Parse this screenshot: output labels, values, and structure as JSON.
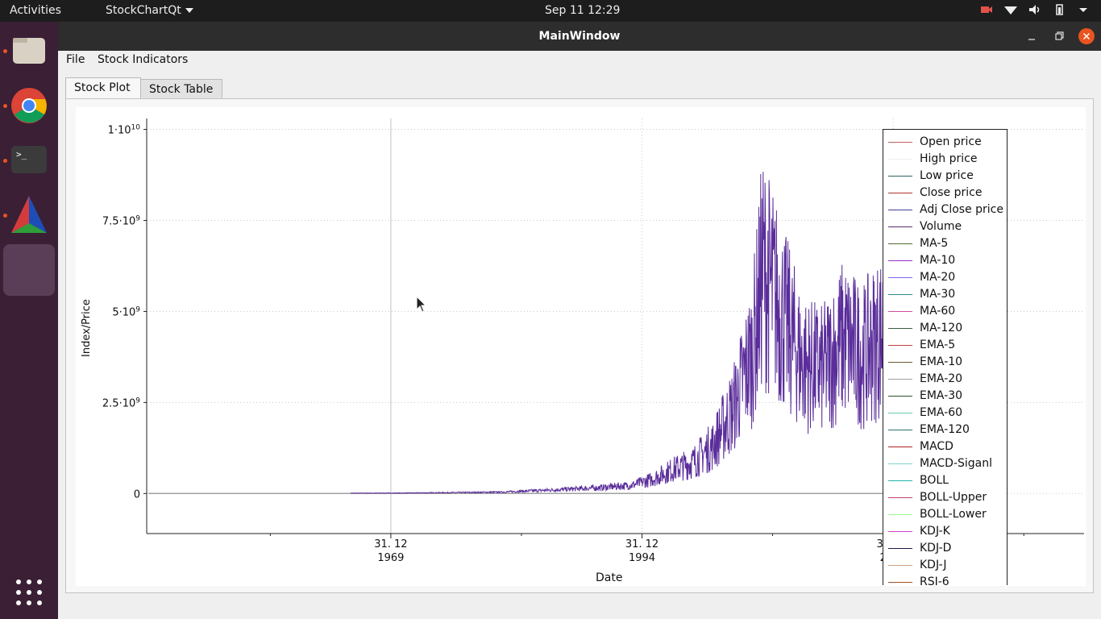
{
  "topbar": {
    "activities": "Activities",
    "app": "StockChartQt",
    "clock": "Sep 11  12:29"
  },
  "window": {
    "title": "MainWindow"
  },
  "menu": {
    "file": "File",
    "indicators": "Stock Indicators"
  },
  "tabs": [
    {
      "label": "Stock Plot"
    },
    {
      "label": "Stock Table"
    }
  ],
  "chart_data": {
    "type": "line",
    "ylabel": "Index/Price",
    "xlabel": "Date",
    "yticks": [
      {
        "v": 10000000000.0,
        "mant": "1·10",
        "exp": "10"
      },
      {
        "v": 7500000000.0,
        "mant": "7.5·10",
        "exp": "9"
      },
      {
        "v": 5000000000.0,
        "mant": "5·10",
        "exp": "9"
      },
      {
        "v": 2500000000.0,
        "mant": "2.5·10",
        "exp": "9"
      },
      {
        "v": 0,
        "mant": "0",
        "exp": ""
      }
    ],
    "xticks": [
      {
        "line1": "31. 12",
        "line2": "1969",
        "year": 1969
      },
      {
        "line1": "31. 12",
        "line2": "1994",
        "year": 1994
      },
      {
        "line1": "31. 12",
        "line2": "2019",
        "year": 2019
      }
    ],
    "xlim": [
      1944.7,
      2038.0
    ],
    "ylim": [
      -1100000000.0,
      10300000000.0
    ],
    "series": [
      {
        "name": "Volume",
        "color": "#5a2d9a",
        "envelope": [
          [
            1960,
            10000000.0
          ],
          [
            1970,
            20000000.0
          ],
          [
            1980,
            60000000.0
          ],
          [
            1985,
            150000000.0
          ],
          [
            1990,
            250000000.0
          ],
          [
            1993,
            350000000.0
          ],
          [
            1995,
            600000000.0
          ],
          [
            1997,
            1000000000.0
          ],
          [
            1999,
            1300000000.0
          ],
          [
            2001,
            2000000000.0
          ],
          [
            2003,
            3500000000.0
          ],
          [
            2005,
            6000000000.0
          ],
          [
            2006,
            9500000000.0
          ],
          [
            2008,
            7500000000.0
          ],
          [
            2010,
            5500000000.0
          ],
          [
            2012,
            5200000000.0
          ],
          [
            2014,
            6500000000.0
          ],
          [
            2016,
            5800000000.0
          ],
          [
            2018,
            6800000000.0
          ],
          [
            2019,
            8200000000.0
          ]
        ]
      },
      {
        "name": "Open price",
        "color": "#a0a0a0",
        "flat": 0
      }
    ],
    "legend": [
      {
        "name": "Open price",
        "color": "#c06060"
      },
      {
        "name": "High price",
        "color": "#f0f0f0"
      },
      {
        "name": "Low price",
        "color": "#2f5f5f"
      },
      {
        "name": "Close price",
        "color": "#b03030"
      },
      {
        "name": "Adj Close price",
        "color": "#4040a0"
      },
      {
        "name": "Volume",
        "color": "#5a2d6a"
      },
      {
        "name": "MA-5",
        "color": "#556b2f"
      },
      {
        "name": "MA-10",
        "color": "#9932cc"
      },
      {
        "name": "MA-20",
        "color": "#7b68ee"
      },
      {
        "name": "MA-30",
        "color": "#2e8b8b"
      },
      {
        "name": "MA-60",
        "color": "#d04ca0"
      },
      {
        "name": "MA-120",
        "color": "#3c5a3c"
      },
      {
        "name": "EMA-5",
        "color": "#c04040"
      },
      {
        "name": "EMA-10",
        "color": "#6b5a2f"
      },
      {
        "name": "EMA-20",
        "color": "#a0a0a0"
      },
      {
        "name": "EMA-30",
        "color": "#2f4f2f"
      },
      {
        "name": "EMA-60",
        "color": "#66cdaa"
      },
      {
        "name": "EMA-120",
        "color": "#2f6f6f"
      },
      {
        "name": "MACD",
        "color": "#b22222"
      },
      {
        "name": "MACD-Siganl",
        "color": "#7fd0d0"
      },
      {
        "name": "BOLL",
        "color": "#20b2aa"
      },
      {
        "name": "BOLL-Upper",
        "color": "#c04070"
      },
      {
        "name": "BOLL-Lower",
        "color": "#98fb98"
      },
      {
        "name": "KDJ-K",
        "color": "#d040d0"
      },
      {
        "name": "KDJ-D",
        "color": "#1a1a4a"
      },
      {
        "name": "KDJ-J",
        "color": "#d2a080"
      },
      {
        "name": "RSI-6",
        "color": "#a0522d"
      }
    ]
  }
}
